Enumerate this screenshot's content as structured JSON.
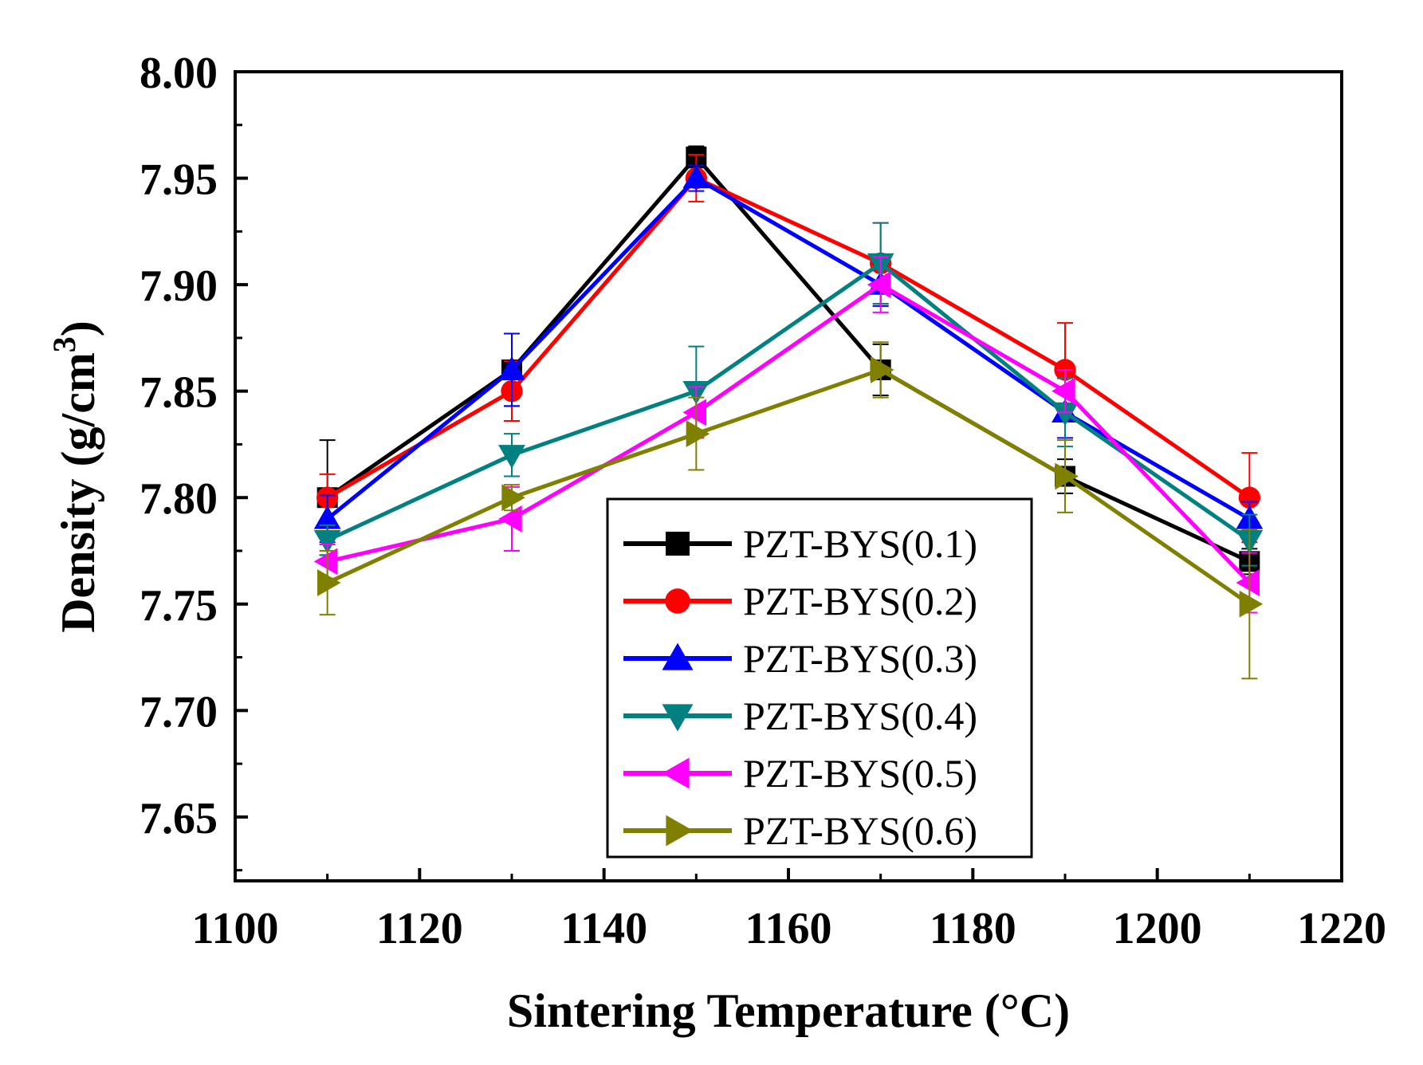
{
  "chart_data": {
    "type": "line",
    "xlabel": "Sintering Temperature (°C)",
    "ylabel_main": "Density (g/cm",
    "ylabel_sup": "3",
    "ylabel_close": ")",
    "xlim": [
      1100,
      1220
    ],
    "ylim": [
      7.62,
      8.0
    ],
    "x_ticks": [
      1100,
      1120,
      1140,
      1160,
      1180,
      1200,
      1220
    ],
    "y_ticks": [
      "7.65",
      "7.70",
      "7.75",
      "7.80",
      "7.85",
      "7.90",
      "7.95",
      "8.00"
    ],
    "legend_position": "lower-center",
    "x": [
      1110,
      1130,
      1150,
      1170,
      1190,
      1210
    ],
    "series": [
      {
        "name": "PZT-BYS(0.1)",
        "color": "#000000",
        "marker": "square",
        "values": [
          7.8,
          7.86,
          7.96,
          7.86,
          7.81,
          7.77
        ],
        "errors": [
          0.027,
          0.017,
          0.005,
          0.012,
          0.008,
          0.006
        ]
      },
      {
        "name": "PZT-BYS(0.2)",
        "color": "#ff0000",
        "marker": "circle",
        "values": [
          7.8,
          7.85,
          7.95,
          7.91,
          7.86,
          7.8
        ],
        "errors": [
          0.011,
          0.014,
          0.011,
          0.019,
          0.022,
          0.021
        ]
      },
      {
        "name": "PZT-BYS(0.3)",
        "color": "#0000ff",
        "marker": "triangle-up",
        "values": [
          7.79,
          7.86,
          7.95,
          7.9,
          7.84,
          7.79
        ],
        "errors": [
          0.011,
          0.017,
          0.006,
          0.01,
          0.012,
          0.008
        ]
      },
      {
        "name": "PZT-BYS(0.4)",
        "color": "#008080",
        "marker": "triangle-down",
        "values": [
          7.78,
          7.82,
          7.85,
          7.91,
          7.84,
          7.78
        ],
        "errors": [
          0.007,
          0.01,
          0.021,
          0.019,
          0.016,
          0.012
        ]
      },
      {
        "name": "PZT-BYS(0.5)",
        "color": "#ff00ff",
        "marker": "triangle-left",
        "values": [
          7.77,
          7.79,
          7.84,
          7.9,
          7.85,
          7.76
        ],
        "errors": [
          0.008,
          0.015,
          0.012,
          0.013,
          0.01,
          0.014
        ]
      },
      {
        "name": "PZT-BYS(0.6)",
        "color": "#808000",
        "marker": "triangle-right",
        "values": [
          7.76,
          7.8,
          7.83,
          7.86,
          7.81,
          7.75
        ],
        "errors": [
          0.015,
          0.006,
          0.017,
          0.013,
          0.017,
          0.035
        ]
      }
    ]
  }
}
